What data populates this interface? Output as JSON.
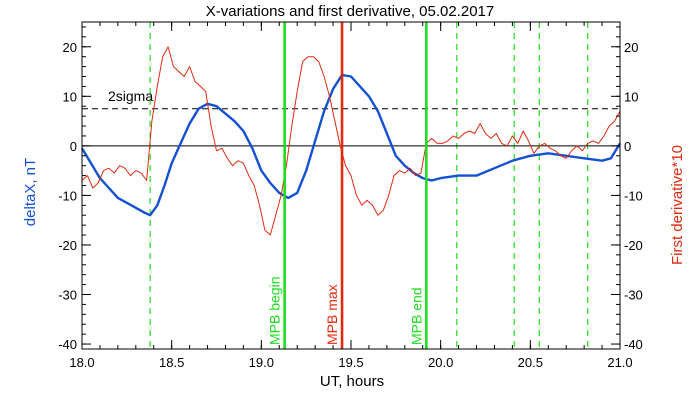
{
  "chart_data": {
    "type": "line",
    "title": "X-variations and first derivative, 05.02.2017",
    "xlabel": "UT, hours",
    "ylabel_left": "deltaX, nT",
    "ylabel_right": "First derivative*10",
    "xlim": [
      18.0,
      21.0
    ],
    "ylim": [
      -41,
      25
    ],
    "x_ticks": [
      18.0,
      18.5,
      19.0,
      19.5,
      20.0,
      20.5,
      21.0
    ],
    "y_ticks": [
      20,
      10,
      0,
      -10,
      -20,
      -30,
      -40
    ],
    "colors": {
      "deltaX": "#1450d2",
      "derivative": "#e02a10",
      "mpb": "#1edc1e",
      "mpb_max": "#e02a10",
      "sigma": "#000000",
      "zero": "#000000"
    },
    "threshold": {
      "label": "2sigma",
      "y": 7.5
    },
    "zero_line": 0,
    "vlines_dashed": [
      18.38,
      20.09,
      20.41,
      20.55,
      20.82
    ],
    "markers": [
      {
        "label": "MPB begin",
        "x": 19.13,
        "kind": "mpb"
      },
      {
        "label": "MPB max",
        "x": 19.45,
        "kind": "mpb_max"
      },
      {
        "label": "MPB end",
        "x": 19.92,
        "kind": "mpb"
      }
    ],
    "series": [
      {
        "id": "deltaX",
        "name": "deltaX, nT",
        "x": [
          18.0,
          18.05,
          18.1,
          18.15,
          18.2,
          18.25,
          18.3,
          18.35,
          18.38,
          18.42,
          18.46,
          18.5,
          18.55,
          18.6,
          18.65,
          18.7,
          18.75,
          18.8,
          18.85,
          18.9,
          18.95,
          19.0,
          19.05,
          19.1,
          19.15,
          19.2,
          19.25,
          19.3,
          19.35,
          19.4,
          19.45,
          19.5,
          19.55,
          19.6,
          19.65,
          19.7,
          19.75,
          19.8,
          19.85,
          19.9,
          19.95,
          20.0,
          20.1,
          20.2,
          20.3,
          20.4,
          20.5,
          20.6,
          20.7,
          20.8,
          20.9,
          20.95,
          21.0
        ],
        "y": [
          -0.5,
          -3.5,
          -6.5,
          -8.5,
          -10.5,
          -11.5,
          -12.5,
          -13.5,
          -14,
          -12,
          -8,
          -3.5,
          0.5,
          4.5,
          7.5,
          8.5,
          8,
          6.5,
          5,
          3,
          -0.5,
          -5,
          -7.5,
          -9.5,
          -10.5,
          -9.5,
          -5,
          1,
          7,
          11.5,
          14.3,
          14,
          12,
          10,
          7,
          2.5,
          -2,
          -4,
          -5.5,
          -6.5,
          -7,
          -6.5,
          -6,
          -6,
          -4.5,
          -3,
          -2,
          -1.5,
          -2,
          -2.5,
          -3,
          -2.5,
          0.5
        ]
      },
      {
        "id": "derivative",
        "name": "First derivative*10",
        "x": [
          18.0,
          18.03,
          18.06,
          18.09,
          18.12,
          18.15,
          18.18,
          18.21,
          18.24,
          18.27,
          18.3,
          18.33,
          18.36,
          18.39,
          18.42,
          18.45,
          18.48,
          18.51,
          18.54,
          18.57,
          18.6,
          18.63,
          18.66,
          18.69,
          18.72,
          18.75,
          18.78,
          18.81,
          18.84,
          18.87,
          18.9,
          18.93,
          18.96,
          18.99,
          19.02,
          19.05,
          19.08,
          19.11,
          19.14,
          19.17,
          19.2,
          19.23,
          19.26,
          19.29,
          19.32,
          19.35,
          19.38,
          19.41,
          19.44,
          19.47,
          19.5,
          19.53,
          19.56,
          19.59,
          19.62,
          19.65,
          19.68,
          19.71,
          19.74,
          19.77,
          19.8,
          19.83,
          19.86,
          19.89,
          19.92,
          19.95,
          19.98,
          20.01,
          20.04,
          20.07,
          20.1,
          20.13,
          20.16,
          20.19,
          20.22,
          20.25,
          20.28,
          20.31,
          20.34,
          20.37,
          20.4,
          20.43,
          20.46,
          20.49,
          20.52,
          20.55,
          20.58,
          20.61,
          20.64,
          20.67,
          20.7,
          20.73,
          20.76,
          20.79,
          20.82,
          20.85,
          20.88,
          20.91,
          20.94,
          20.97,
          21.0
        ],
        "y": [
          -7,
          -6,
          -8.5,
          -7.5,
          -5,
          -4.5,
          -5.5,
          -4,
          -4.5,
          -6,
          -5,
          -5.5,
          -7,
          5,
          12,
          18,
          20,
          16,
          15,
          14,
          16,
          13,
          12,
          11,
          4,
          -1,
          -0.5,
          -2.5,
          -4,
          -3,
          -3.5,
          -6,
          -8,
          -12,
          -17,
          -18,
          -14,
          -10,
          -4,
          4,
          11,
          17,
          18,
          18,
          17,
          14,
          10,
          5,
          0,
          -4,
          -6,
          -10,
          -12,
          -11,
          -12,
          -14,
          -13,
          -10,
          -6,
          -5,
          -5.5,
          -4.5,
          -6,
          -5.5,
          0.5,
          1.5,
          0.5,
          0.5,
          1,
          2,
          1.5,
          2.5,
          3,
          2.5,
          4.5,
          2.5,
          1.5,
          2.5,
          0.5,
          0,
          2,
          0.5,
          3,
          1,
          -1.5,
          0,
          0.5,
          -0.5,
          -1,
          -2,
          -2.5,
          -1,
          0,
          -1,
          0.5,
          1,
          0.5,
          2,
          4,
          5,
          7
        ]
      }
    ]
  }
}
